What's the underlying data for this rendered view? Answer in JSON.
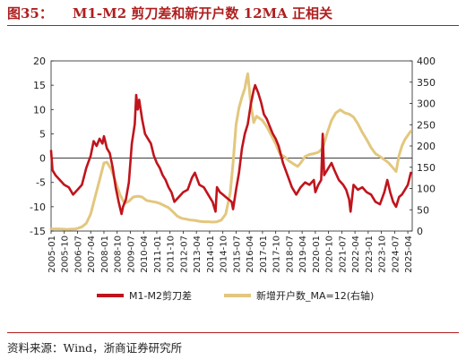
{
  "figure": {
    "number": "图35：",
    "title": "M1-M2 剪刀差和新开户数 12MA 正相关",
    "source": "资料来源：Wind，浙商证券研究所"
  },
  "colors": {
    "m1m2": "#c0141c",
    "accounts": "#e2c77e",
    "title": "#b01e1e"
  },
  "chart_data": {
    "type": "line",
    "x_tick_labels": [
      "2005-01",
      "2005-10",
      "2006-07",
      "2007-04",
      "2008-01",
      "2008-10",
      "2009-07",
      "2010-04",
      "2011-01",
      "2011-10",
      "2012-07",
      "2013-04",
      "2014-01",
      "2014-10",
      "2015-07",
      "2016-04",
      "2017-01",
      "2017-10",
      "2018-07",
      "2019-04",
      "2020-01",
      "2020-10",
      "2021-07",
      "2022-04",
      "2023-01",
      "2023-10",
      "2024-07",
      "2025-04"
    ],
    "ylim_left": [
      -15,
      20
    ],
    "yticks_left": [
      -15,
      -10,
      -5,
      0,
      5,
      10,
      15,
      20
    ],
    "ylim_right": [
      0,
      400
    ],
    "yticks_right": [
      0,
      50,
      100,
      150,
      200,
      250,
      300,
      350,
      400
    ],
    "legend_position": "bottom",
    "series": [
      {
        "name": "M1-M2剪刀差",
        "axis": "left",
        "points": [
          [
            "2005-01",
            1.5
          ],
          [
            "2005-02",
            -2.5
          ],
          [
            "2005-04",
            -3.5
          ],
          [
            "2005-07",
            -4.5
          ],
          [
            "2005-10",
            -5.5
          ],
          [
            "2006-01",
            -6.0
          ],
          [
            "2006-04",
            -7.5
          ],
          [
            "2006-07",
            -6.5
          ],
          [
            "2006-10",
            -5.5
          ],
          [
            "2007-01",
            -2.0
          ],
          [
            "2007-04",
            0.5
          ],
          [
            "2007-06",
            3.5
          ],
          [
            "2007-08",
            2.5
          ],
          [
            "2007-10",
            4.0
          ],
          [
            "2007-12",
            3.0
          ],
          [
            "2008-01",
            4.5
          ],
          [
            "2008-03",
            2.0
          ],
          [
            "2008-05",
            1.0
          ],
          [
            "2008-07",
            -2.0
          ],
          [
            "2008-09",
            -6.0
          ],
          [
            "2008-11",
            -9.0
          ],
          [
            "2009-01",
            -11.5
          ],
          [
            "2009-02",
            -10.0
          ],
          [
            "2009-04",
            -8.5
          ],
          [
            "2009-06",
            -5.0
          ],
          [
            "2009-08",
            3.0
          ],
          [
            "2009-10",
            7.0
          ],
          [
            "2009-11",
            13.0
          ],
          [
            "2009-12",
            10.0
          ],
          [
            "2010-01",
            12.0
          ],
          [
            "2010-03",
            8.0
          ],
          [
            "2010-05",
            5.0
          ],
          [
            "2010-07",
            4.0
          ],
          [
            "2010-09",
            3.0
          ],
          [
            "2010-11",
            0.5
          ],
          [
            "2011-01",
            -1.0
          ],
          [
            "2011-03",
            -2.0
          ],
          [
            "2011-05",
            -3.5
          ],
          [
            "2011-07",
            -4.5
          ],
          [
            "2011-09",
            -6.0
          ],
          [
            "2011-11",
            -7.0
          ],
          [
            "2012-01",
            -9.0
          ],
          [
            "2012-04",
            -8.0
          ],
          [
            "2012-07",
            -7.0
          ],
          [
            "2012-10",
            -6.5
          ],
          [
            "2013-01",
            -4.0
          ],
          [
            "2013-03",
            -3.0
          ],
          [
            "2013-06",
            -5.5
          ],
          [
            "2013-09",
            -6.0
          ],
          [
            "2013-12",
            -7.5
          ],
          [
            "2014-03",
            -9.0
          ],
          [
            "2014-05",
            -11.0
          ],
          [
            "2014-06",
            -6.0
          ],
          [
            "2014-08",
            -7.0
          ],
          [
            "2014-10",
            -7.5
          ],
          [
            "2014-12",
            -8.0
          ],
          [
            "2015-02",
            -8.5
          ],
          [
            "2015-04",
            -9.0
          ],
          [
            "2015-05",
            -10.5
          ],
          [
            "2015-07",
            -6.5
          ],
          [
            "2015-09",
            -3.0
          ],
          [
            "2015-11",
            2.0
          ],
          [
            "2016-01",
            5.0
          ],
          [
            "2016-03",
            7.0
          ],
          [
            "2016-05",
            11.0
          ],
          [
            "2016-07",
            14.0
          ],
          [
            "2016-08",
            15.0
          ],
          [
            "2016-10",
            13.5
          ],
          [
            "2016-12",
            11.5
          ],
          [
            "2017-02",
            9.0
          ],
          [
            "2017-04",
            8.0
          ],
          [
            "2017-06",
            6.5
          ],
          [
            "2017-08",
            5.0
          ],
          [
            "2017-10",
            4.0
          ],
          [
            "2017-12",
            2.5
          ],
          [
            "2018-03",
            -1.0
          ],
          [
            "2018-06",
            -3.5
          ],
          [
            "2018-09",
            -6.0
          ],
          [
            "2018-12",
            -7.5
          ],
          [
            "2019-03",
            -6.0
          ],
          [
            "2019-06",
            -5.0
          ],
          [
            "2019-09",
            -5.5
          ],
          [
            "2019-12",
            -4.5
          ],
          [
            "2020-01",
            -7.0
          ],
          [
            "2020-03",
            -5.5
          ],
          [
            "2020-05",
            -4.5
          ],
          [
            "2020-06",
            5.0
          ],
          [
            "2020-07",
            -3.5
          ],
          [
            "2020-09",
            -2.5
          ],
          [
            "2020-12",
            -1.0
          ],
          [
            "2021-02",
            -2.5
          ],
          [
            "2021-05",
            -4.5
          ],
          [
            "2021-08",
            -5.5
          ],
          [
            "2021-10",
            -6.5
          ],
          [
            "2021-12",
            -8.5
          ],
          [
            "2022-01",
            -11.0
          ],
          [
            "2022-03",
            -5.5
          ],
          [
            "2022-06",
            -6.5
          ],
          [
            "2022-09",
            -6.0
          ],
          [
            "2022-12",
            -7.0
          ],
          [
            "2023-03",
            -7.5
          ],
          [
            "2023-06",
            -9.0
          ],
          [
            "2023-09",
            -9.5
          ],
          [
            "2023-12",
            -7.0
          ],
          [
            "2024-02",
            -4.5
          ],
          [
            "2024-04",
            -7.0
          ],
          [
            "2024-06",
            -9.0
          ],
          [
            "2024-08",
            -10.0
          ],
          [
            "2024-10",
            -8.0
          ],
          [
            "2024-12",
            -7.5
          ],
          [
            "2025-02",
            -6.5
          ],
          [
            "2025-04",
            -5.5
          ],
          [
            "2025-06",
            -3.0
          ]
        ]
      },
      {
        "name": "新增开户数_MA=12(右轴)",
        "axis": "right",
        "points": [
          [
            "2005-01",
            5
          ],
          [
            "2005-06",
            5
          ],
          [
            "2005-12",
            4
          ],
          [
            "2006-06",
            5
          ],
          [
            "2006-10",
            10
          ],
          [
            "2007-01",
            18
          ],
          [
            "2007-04",
            40
          ],
          [
            "2007-07",
            80
          ],
          [
            "2007-10",
            120
          ],
          [
            "2008-01",
            160
          ],
          [
            "2008-03",
            162
          ],
          [
            "2008-06",
            145
          ],
          [
            "2008-09",
            115
          ],
          [
            "2008-12",
            85
          ],
          [
            "2009-03",
            65
          ],
          [
            "2009-06",
            70
          ],
          [
            "2009-09",
            80
          ],
          [
            "2009-12",
            82
          ],
          [
            "2010-03",
            80
          ],
          [
            "2010-06",
            72
          ],
          [
            "2010-09",
            70
          ],
          [
            "2010-12",
            68
          ],
          [
            "2011-03",
            65
          ],
          [
            "2011-06",
            60
          ],
          [
            "2011-09",
            55
          ],
          [
            "2011-12",
            45
          ],
          [
            "2012-03",
            35
          ],
          [
            "2012-06",
            30
          ],
          [
            "2012-09",
            28
          ],
          [
            "2012-12",
            26
          ],
          [
            "2013-03",
            25
          ],
          [
            "2013-06",
            23
          ],
          [
            "2013-09",
            22
          ],
          [
            "2013-12",
            22
          ],
          [
            "2014-03",
            21
          ],
          [
            "2014-06",
            22
          ],
          [
            "2014-09",
            26
          ],
          [
            "2014-12",
            40
          ],
          [
            "2015-03",
            90
          ],
          [
            "2015-05",
            160
          ],
          [
            "2015-07",
            250
          ],
          [
            "2015-09",
            290
          ],
          [
            "2015-11",
            315
          ],
          [
            "2016-01",
            335
          ],
          [
            "2016-02",
            355
          ],
          [
            "2016-03",
            370
          ],
          [
            "2016-05",
            300
          ],
          [
            "2016-07",
            255
          ],
          [
            "2016-09",
            270
          ],
          [
            "2016-11",
            265
          ],
          [
            "2017-01",
            260
          ],
          [
            "2017-04",
            245
          ],
          [
            "2017-07",
            225
          ],
          [
            "2017-10",
            205
          ],
          [
            "2018-01",
            180
          ],
          [
            "2018-04",
            175
          ],
          [
            "2018-07",
            165
          ],
          [
            "2018-10",
            158
          ],
          [
            "2019-01",
            152
          ],
          [
            "2019-03",
            160
          ],
          [
            "2019-06",
            175
          ],
          [
            "2019-09",
            180
          ],
          [
            "2019-12",
            182
          ],
          [
            "2020-03",
            185
          ],
          [
            "2020-06",
            195
          ],
          [
            "2020-09",
            230
          ],
          [
            "2020-12",
            260
          ],
          [
            "2021-03",
            278
          ],
          [
            "2021-06",
            285
          ],
          [
            "2021-09",
            278
          ],
          [
            "2021-12",
            275
          ],
          [
            "2022-03",
            268
          ],
          [
            "2022-06",
            252
          ],
          [
            "2022-09",
            232
          ],
          [
            "2022-12",
            215
          ],
          [
            "2023-03",
            196
          ],
          [
            "2023-06",
            182
          ],
          [
            "2023-09",
            175
          ],
          [
            "2023-12",
            168
          ],
          [
            "2024-03",
            160
          ],
          [
            "2024-06",
            148
          ],
          [
            "2024-08",
            140
          ],
          [
            "2024-10",
            178
          ],
          [
            "2024-12",
            200
          ],
          [
            "2025-02",
            215
          ],
          [
            "2025-04",
            225
          ],
          [
            "2025-06",
            235
          ]
        ]
      }
    ]
  }
}
